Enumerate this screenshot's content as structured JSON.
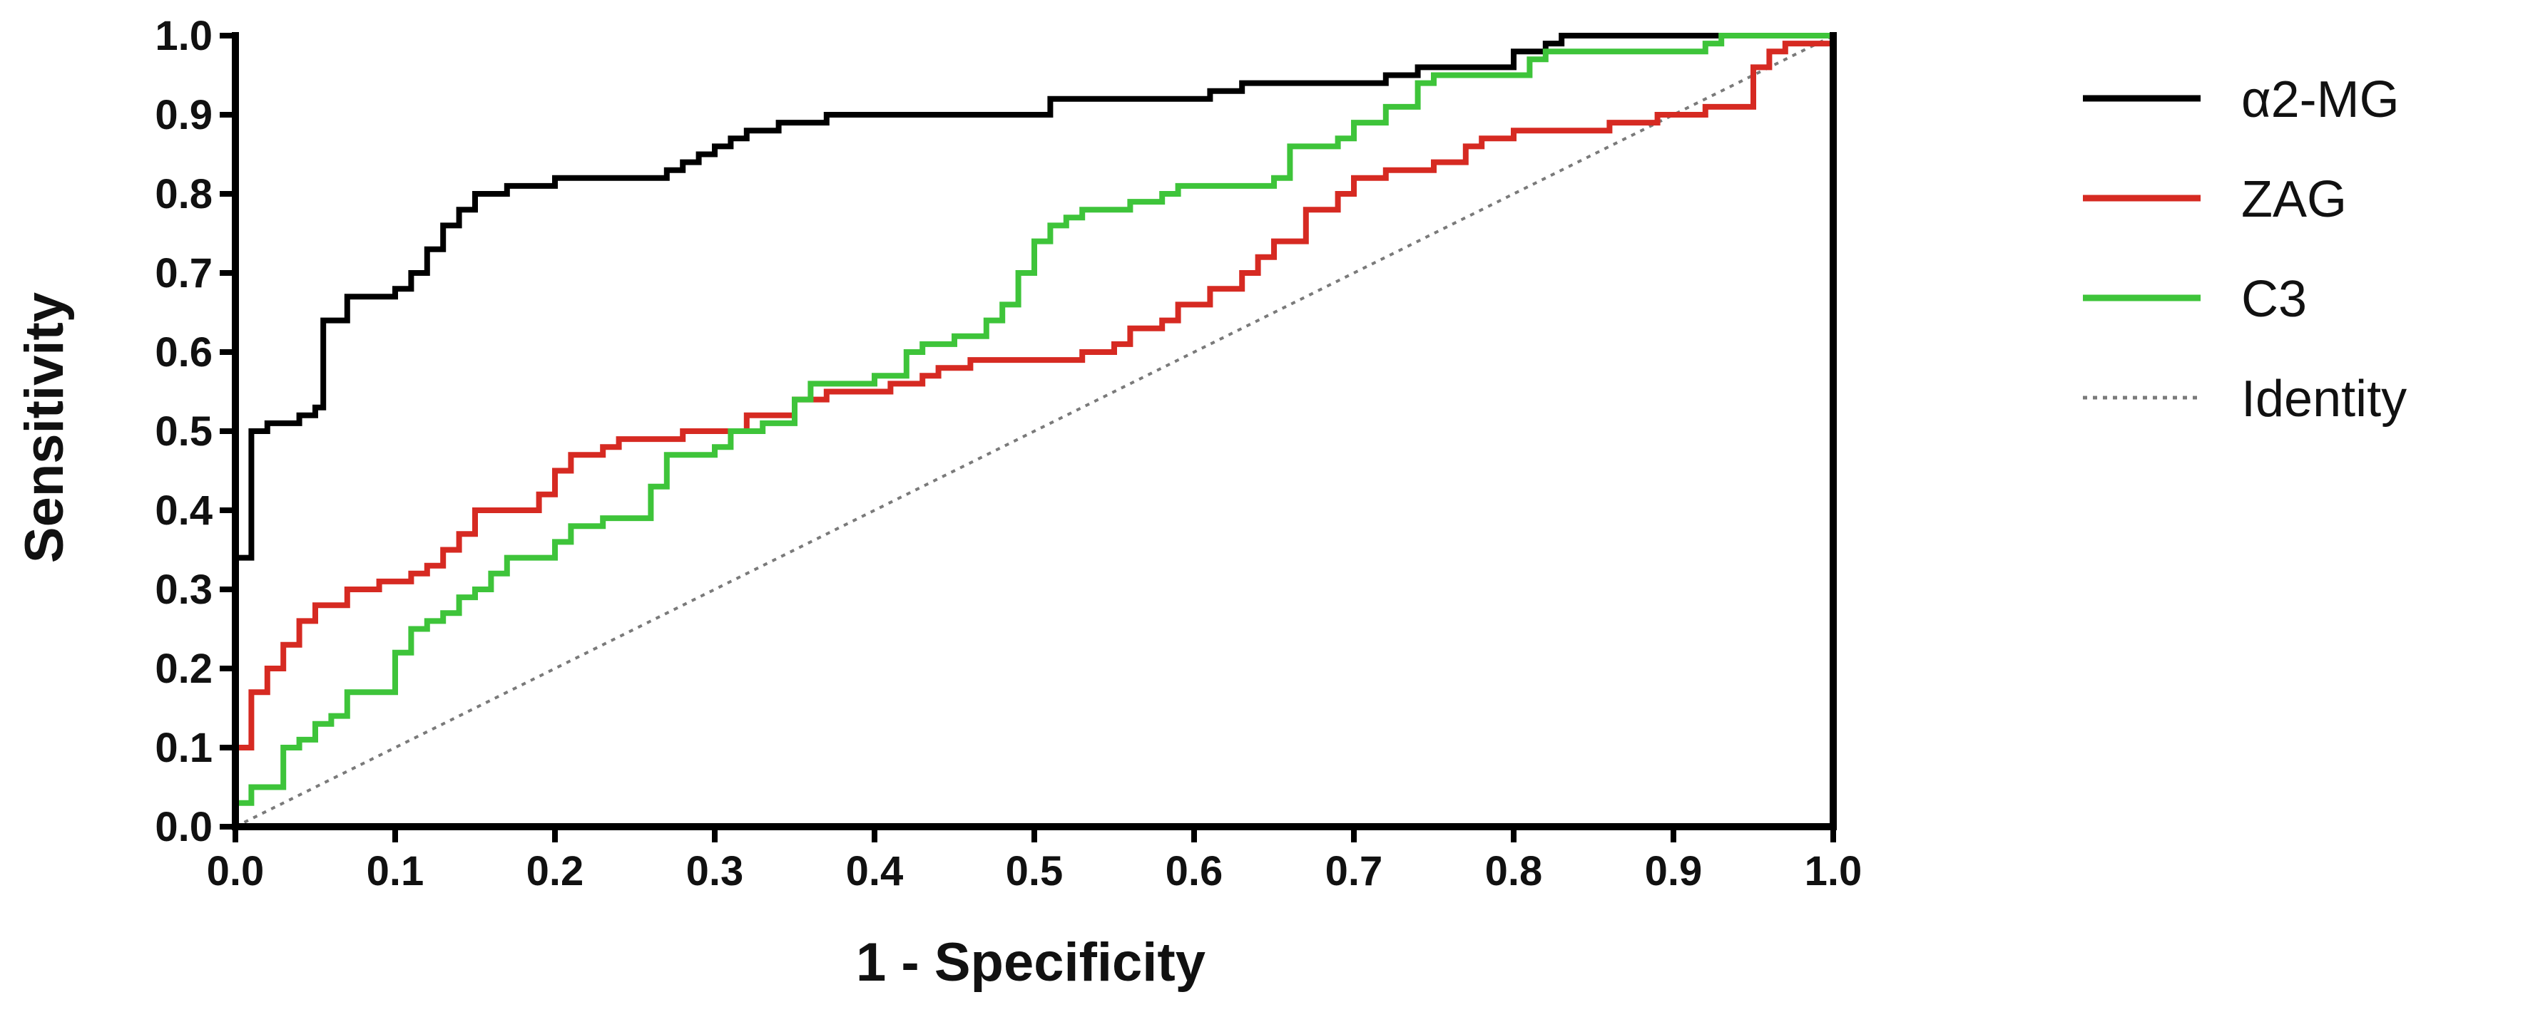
{
  "chart_data": {
    "type": "line",
    "title": "",
    "xlabel": "1 - Specificity",
    "ylabel": "Sensitivity",
    "xlim": [
      0,
      1
    ],
    "ylim": [
      0,
      1
    ],
    "xticks": [
      "0.0",
      "0.1",
      "0.2",
      "0.3",
      "0.4",
      "0.5",
      "0.6",
      "0.7",
      "0.8",
      "0.9",
      "1.0"
    ],
    "yticks": [
      "0.0",
      "0.1",
      "0.2",
      "0.3",
      "0.4",
      "0.5",
      "0.6",
      "0.7",
      "0.8",
      "0.9",
      "1.0"
    ],
    "grid": false,
    "legend_position": "right",
    "series": [
      {
        "name": "α2-MG",
        "color": "#000000",
        "style": "solid",
        "points": [
          [
            0,
            0
          ],
          [
            0,
            0.34
          ],
          [
            0.01,
            0.34
          ],
          [
            0.01,
            0.5
          ],
          [
            0.02,
            0.5
          ],
          [
            0.02,
            0.51
          ],
          [
            0.04,
            0.51
          ],
          [
            0.04,
            0.52
          ],
          [
            0.05,
            0.52
          ],
          [
            0.05,
            0.53
          ],
          [
            0.055,
            0.53
          ],
          [
            0.055,
            0.64
          ],
          [
            0.07,
            0.64
          ],
          [
            0.07,
            0.67
          ],
          [
            0.1,
            0.67
          ],
          [
            0.1,
            0.68
          ],
          [
            0.11,
            0.68
          ],
          [
            0.11,
            0.7
          ],
          [
            0.12,
            0.7
          ],
          [
            0.12,
            0.73
          ],
          [
            0.13,
            0.73
          ],
          [
            0.13,
            0.76
          ],
          [
            0.14,
            0.76
          ],
          [
            0.14,
            0.78
          ],
          [
            0.15,
            0.78
          ],
          [
            0.15,
            0.8
          ],
          [
            0.17,
            0.8
          ],
          [
            0.17,
            0.81
          ],
          [
            0.2,
            0.81
          ],
          [
            0.2,
            0.82
          ],
          [
            0.27,
            0.82
          ],
          [
            0.27,
            0.83
          ],
          [
            0.28,
            0.83
          ],
          [
            0.28,
            0.84
          ],
          [
            0.29,
            0.84
          ],
          [
            0.29,
            0.85
          ],
          [
            0.3,
            0.85
          ],
          [
            0.3,
            0.86
          ],
          [
            0.31,
            0.86
          ],
          [
            0.31,
            0.87
          ],
          [
            0.32,
            0.87
          ],
          [
            0.32,
            0.88
          ],
          [
            0.34,
            0.88
          ],
          [
            0.34,
            0.89
          ],
          [
            0.37,
            0.89
          ],
          [
            0.37,
            0.9
          ],
          [
            0.51,
            0.9
          ],
          [
            0.51,
            0.92
          ],
          [
            0.61,
            0.92
          ],
          [
            0.61,
            0.93
          ],
          [
            0.63,
            0.93
          ],
          [
            0.63,
            0.94
          ],
          [
            0.72,
            0.94
          ],
          [
            0.72,
            0.95
          ],
          [
            0.74,
            0.95
          ],
          [
            0.74,
            0.96
          ],
          [
            0.8,
            0.96
          ],
          [
            0.8,
            0.98
          ],
          [
            0.82,
            0.98
          ],
          [
            0.82,
            0.99
          ],
          [
            0.83,
            0.99
          ],
          [
            0.83,
            1.0
          ],
          [
            1.0,
            1.0
          ]
        ]
      },
      {
        "name": "ZAG",
        "color": "#d62a22",
        "style": "solid",
        "points": [
          [
            0,
            0.1
          ],
          [
            0.01,
            0.1
          ],
          [
            0.01,
            0.17
          ],
          [
            0.02,
            0.17
          ],
          [
            0.02,
            0.2
          ],
          [
            0.03,
            0.2
          ],
          [
            0.03,
            0.23
          ],
          [
            0.04,
            0.23
          ],
          [
            0.04,
            0.26
          ],
          [
            0.05,
            0.26
          ],
          [
            0.05,
            0.28
          ],
          [
            0.07,
            0.28
          ],
          [
            0.07,
            0.3
          ],
          [
            0.09,
            0.3
          ],
          [
            0.09,
            0.31
          ],
          [
            0.11,
            0.31
          ],
          [
            0.11,
            0.32
          ],
          [
            0.12,
            0.32
          ],
          [
            0.12,
            0.33
          ],
          [
            0.13,
            0.33
          ],
          [
            0.13,
            0.35
          ],
          [
            0.14,
            0.35
          ],
          [
            0.14,
            0.37
          ],
          [
            0.15,
            0.37
          ],
          [
            0.15,
            0.4
          ],
          [
            0.19,
            0.4
          ],
          [
            0.19,
            0.42
          ],
          [
            0.2,
            0.42
          ],
          [
            0.2,
            0.45
          ],
          [
            0.21,
            0.45
          ],
          [
            0.21,
            0.47
          ],
          [
            0.23,
            0.47
          ],
          [
            0.23,
            0.48
          ],
          [
            0.24,
            0.48
          ],
          [
            0.24,
            0.49
          ],
          [
            0.28,
            0.49
          ],
          [
            0.28,
            0.5
          ],
          [
            0.32,
            0.5
          ],
          [
            0.32,
            0.52
          ],
          [
            0.35,
            0.52
          ],
          [
            0.35,
            0.54
          ],
          [
            0.37,
            0.54
          ],
          [
            0.37,
            0.55
          ],
          [
            0.41,
            0.55
          ],
          [
            0.41,
            0.56
          ],
          [
            0.43,
            0.56
          ],
          [
            0.43,
            0.57
          ],
          [
            0.44,
            0.57
          ],
          [
            0.44,
            0.58
          ],
          [
            0.46,
            0.58
          ],
          [
            0.46,
            0.59
          ],
          [
            0.53,
            0.59
          ],
          [
            0.53,
            0.6
          ],
          [
            0.55,
            0.6
          ],
          [
            0.55,
            0.61
          ],
          [
            0.56,
            0.61
          ],
          [
            0.56,
            0.63
          ],
          [
            0.58,
            0.63
          ],
          [
            0.58,
            0.64
          ],
          [
            0.59,
            0.64
          ],
          [
            0.59,
            0.66
          ],
          [
            0.61,
            0.66
          ],
          [
            0.61,
            0.68
          ],
          [
            0.63,
            0.68
          ],
          [
            0.63,
            0.7
          ],
          [
            0.64,
            0.7
          ],
          [
            0.64,
            0.72
          ],
          [
            0.65,
            0.72
          ],
          [
            0.65,
            0.74
          ],
          [
            0.67,
            0.74
          ],
          [
            0.67,
            0.78
          ],
          [
            0.69,
            0.78
          ],
          [
            0.69,
            0.8
          ],
          [
            0.7,
            0.8
          ],
          [
            0.7,
            0.82
          ],
          [
            0.72,
            0.82
          ],
          [
            0.72,
            0.83
          ],
          [
            0.75,
            0.83
          ],
          [
            0.75,
            0.84
          ],
          [
            0.77,
            0.84
          ],
          [
            0.77,
            0.86
          ],
          [
            0.78,
            0.86
          ],
          [
            0.78,
            0.87
          ],
          [
            0.8,
            0.87
          ],
          [
            0.8,
            0.88
          ],
          [
            0.86,
            0.88
          ],
          [
            0.86,
            0.89
          ],
          [
            0.89,
            0.89
          ],
          [
            0.89,
            0.9
          ],
          [
            0.92,
            0.9
          ],
          [
            0.92,
            0.91
          ],
          [
            0.95,
            0.91
          ],
          [
            0.95,
            0.96
          ],
          [
            0.96,
            0.96
          ],
          [
            0.96,
            0.98
          ],
          [
            0.97,
            0.98
          ],
          [
            0.97,
            0.99
          ],
          [
            0.98,
            0.99
          ],
          [
            1.0,
            0.99
          ],
          [
            1.0,
            1.0
          ]
        ]
      },
      {
        "name": "C3",
        "color": "#3ec43a",
        "style": "solid",
        "points": [
          [
            0,
            0.03
          ],
          [
            0.01,
            0.03
          ],
          [
            0.01,
            0.05
          ],
          [
            0.03,
            0.05
          ],
          [
            0.03,
            0.1
          ],
          [
            0.04,
            0.1
          ],
          [
            0.04,
            0.11
          ],
          [
            0.05,
            0.11
          ],
          [
            0.05,
            0.13
          ],
          [
            0.06,
            0.13
          ],
          [
            0.06,
            0.14
          ],
          [
            0.07,
            0.14
          ],
          [
            0.07,
            0.17
          ],
          [
            0.1,
            0.17
          ],
          [
            0.1,
            0.22
          ],
          [
            0.11,
            0.22
          ],
          [
            0.11,
            0.25
          ],
          [
            0.12,
            0.25
          ],
          [
            0.12,
            0.26
          ],
          [
            0.13,
            0.26
          ],
          [
            0.13,
            0.27
          ],
          [
            0.14,
            0.27
          ],
          [
            0.14,
            0.29
          ],
          [
            0.15,
            0.29
          ],
          [
            0.15,
            0.3
          ],
          [
            0.16,
            0.3
          ],
          [
            0.16,
            0.32
          ],
          [
            0.17,
            0.32
          ],
          [
            0.17,
            0.34
          ],
          [
            0.2,
            0.34
          ],
          [
            0.2,
            0.36
          ],
          [
            0.21,
            0.36
          ],
          [
            0.21,
            0.38
          ],
          [
            0.23,
            0.38
          ],
          [
            0.23,
            0.39
          ],
          [
            0.26,
            0.39
          ],
          [
            0.26,
            0.43
          ],
          [
            0.27,
            0.43
          ],
          [
            0.27,
            0.47
          ],
          [
            0.3,
            0.47
          ],
          [
            0.3,
            0.48
          ],
          [
            0.31,
            0.48
          ],
          [
            0.31,
            0.5
          ],
          [
            0.33,
            0.5
          ],
          [
            0.33,
            0.51
          ],
          [
            0.35,
            0.51
          ],
          [
            0.35,
            0.54
          ],
          [
            0.36,
            0.54
          ],
          [
            0.36,
            0.56
          ],
          [
            0.4,
            0.56
          ],
          [
            0.4,
            0.57
          ],
          [
            0.42,
            0.57
          ],
          [
            0.42,
            0.6
          ],
          [
            0.43,
            0.6
          ],
          [
            0.43,
            0.61
          ],
          [
            0.45,
            0.61
          ],
          [
            0.45,
            0.62
          ],
          [
            0.47,
            0.62
          ],
          [
            0.47,
            0.64
          ],
          [
            0.48,
            0.64
          ],
          [
            0.48,
            0.66
          ],
          [
            0.49,
            0.66
          ],
          [
            0.49,
            0.7
          ],
          [
            0.5,
            0.7
          ],
          [
            0.5,
            0.74
          ],
          [
            0.51,
            0.74
          ],
          [
            0.51,
            0.76
          ],
          [
            0.52,
            0.76
          ],
          [
            0.52,
            0.77
          ],
          [
            0.53,
            0.77
          ],
          [
            0.53,
            0.78
          ],
          [
            0.56,
            0.78
          ],
          [
            0.56,
            0.79
          ],
          [
            0.58,
            0.79
          ],
          [
            0.58,
            0.8
          ],
          [
            0.59,
            0.8
          ],
          [
            0.59,
            0.81
          ],
          [
            0.65,
            0.81
          ],
          [
            0.65,
            0.82
          ],
          [
            0.66,
            0.82
          ],
          [
            0.66,
            0.86
          ],
          [
            0.69,
            0.86
          ],
          [
            0.69,
            0.87
          ],
          [
            0.7,
            0.87
          ],
          [
            0.7,
            0.89
          ],
          [
            0.72,
            0.89
          ],
          [
            0.72,
            0.91
          ],
          [
            0.74,
            0.91
          ],
          [
            0.74,
            0.94
          ],
          [
            0.75,
            0.94
          ],
          [
            0.75,
            0.95
          ],
          [
            0.81,
            0.95
          ],
          [
            0.81,
            0.97
          ],
          [
            0.82,
            0.97
          ],
          [
            0.82,
            0.98
          ],
          [
            0.92,
            0.98
          ],
          [
            0.92,
            0.99
          ],
          [
            0.93,
            0.99
          ],
          [
            0.93,
            1.0
          ],
          [
            1.0,
            1.0
          ]
        ]
      },
      {
        "name": "Identity",
        "color": "#7a7a7a",
        "style": "dotted",
        "points": [
          [
            0,
            0
          ],
          [
            1,
            1
          ]
        ]
      }
    ]
  }
}
